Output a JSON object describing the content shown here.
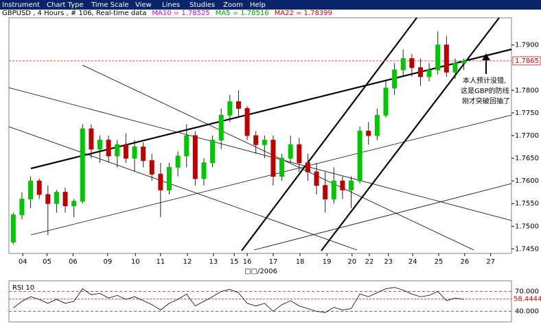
{
  "menu": [
    "Instrument",
    "Chart Type",
    "Time Scale",
    "View",
    "Lines",
    "Studies",
    "Zoom",
    "Help"
  ],
  "header": {
    "symbol": "GBPUSD , 4 Hours , # 106, Real-time data",
    "indicators": [
      {
        "text": "MA10 = 1.78525",
        "color": "#e000e0"
      },
      {
        "text": "MA5 = 1.78516",
        "color": "#00a000"
      },
      {
        "text": "MA22 = 1.78399",
        "color": "#e00000"
      }
    ]
  },
  "annotation": [
    "本人预计没错,",
    "这是GBP的防线",
    "刚才突破回抽了"
  ],
  "chart_data": [
    {
      "type": "candlestick",
      "xlabel": "□□/2006",
      "xlim": [
        0,
        58
      ],
      "xticks": [
        {
          "value": 1.6,
          "label": "04"
        },
        {
          "value": 4.4,
          "label": "05"
        },
        {
          "value": 7.4,
          "label": "06"
        },
        {
          "value": 11.4,
          "label": "09"
        },
        {
          "value": 14.6,
          "label": "10"
        },
        {
          "value": 17.5,
          "label": "11"
        },
        {
          "value": 20.6,
          "label": "12"
        },
        {
          "value": 23.6,
          "label": "13"
        },
        {
          "value": 26,
          "label": "15"
        },
        {
          "value": 27.5,
          "label": "16"
        },
        {
          "value": 30.5,
          "label": "17"
        },
        {
          "value": 33.6,
          "label": "18"
        },
        {
          "value": 36.7,
          "label": "19"
        },
        {
          "value": 39.6,
          "label": "20"
        },
        {
          "value": 41.6,
          "label": "22"
        },
        {
          "value": 43.8,
          "label": "23"
        },
        {
          "value": 46.6,
          "label": "24"
        },
        {
          "value": 49.6,
          "label": "25"
        },
        {
          "value": 52.6,
          "label": "26"
        },
        {
          "value": 55.6,
          "label": "27"
        }
      ],
      "ylim": [
        1.744,
        1.796
      ],
      "yticks": [
        {
          "value": 1.745,
          "label": "1.7450"
        },
        {
          "value": 1.75,
          "label": "1.7500"
        },
        {
          "value": 1.755,
          "label": "1.7550"
        },
        {
          "value": 1.76,
          "label": "1.7600"
        },
        {
          "value": 1.765,
          "label": "1.7650"
        },
        {
          "value": 1.77,
          "label": "1.7700"
        },
        {
          "value": 1.775,
          "label": "1.7750"
        },
        {
          "value": 1.78,
          "label": "1.7800"
        },
        {
          "value": 1.79,
          "label": "1.7900"
        }
      ],
      "current_price": 1.7865,
      "up_color": "#00c800",
      "down_color": "#c00000",
      "x": [
        0.5,
        1.5,
        2.5,
        3.5,
        4.5,
        5.5,
        6.5,
        7.5,
        8.5,
        9.5,
        10.5,
        11.5,
        12.5,
        13.5,
        14.5,
        15.5,
        16.5,
        17.5,
        18.5,
        19.5,
        20.5,
        21.5,
        22.5,
        23.5,
        24.5,
        25.5,
        26.5,
        27.5,
        28.5,
        29.5,
        30.5,
        31.5,
        32.5,
        33.5,
        34.5,
        35.5,
        36.5,
        37.5,
        38.5,
        39.5,
        40.5,
        41.5,
        42.5,
        43.5,
        44.5,
        45.5,
        46.5,
        47.5,
        48.5,
        49.5,
        50.5,
        51.5,
        52.5
      ],
      "open": [
        1.7465,
        1.7525,
        1.756,
        1.76,
        1.757,
        1.755,
        1.7575,
        1.7545,
        1.7555,
        1.7715,
        1.767,
        1.769,
        1.7655,
        1.768,
        1.765,
        1.7675,
        1.7645,
        1.7615,
        1.758,
        1.763,
        1.7655,
        1.77,
        1.7605,
        1.764,
        1.769,
        1.7745,
        1.7775,
        1.776,
        1.77,
        1.768,
        1.769,
        1.761,
        1.765,
        1.768,
        1.764,
        1.762,
        1.759,
        1.756,
        1.76,
        1.758,
        1.76,
        1.771,
        1.77,
        1.7745,
        1.7805,
        1.7845,
        1.787,
        1.785,
        1.783,
        1.7845,
        1.79,
        1.784,
        1.786
      ],
      "high": [
        1.753,
        1.7575,
        1.761,
        1.7605,
        1.759,
        1.758,
        1.7585,
        1.756,
        1.7725,
        1.7725,
        1.77,
        1.77,
        1.769,
        1.7705,
        1.769,
        1.7685,
        1.766,
        1.764,
        1.764,
        1.7665,
        1.7725,
        1.771,
        1.765,
        1.77,
        1.776,
        1.779,
        1.78,
        1.7765,
        1.771,
        1.77,
        1.77,
        1.766,
        1.77,
        1.7695,
        1.766,
        1.764,
        1.762,
        1.763,
        1.761,
        1.761,
        1.772,
        1.773,
        1.776,
        1.782,
        1.786,
        1.789,
        1.788,
        1.787,
        1.786,
        1.793,
        1.792,
        1.787,
        1.787
      ],
      "low": [
        1.746,
        1.7515,
        1.754,
        1.756,
        1.748,
        1.753,
        1.753,
        1.752,
        1.755,
        1.765,
        1.764,
        1.764,
        1.763,
        1.764,
        1.762,
        1.763,
        1.76,
        1.752,
        1.757,
        1.761,
        1.763,
        1.759,
        1.759,
        1.763,
        1.767,
        1.773,
        1.774,
        1.769,
        1.766,
        1.765,
        1.759,
        1.76,
        1.764,
        1.762,
        1.76,
        1.757,
        1.753,
        1.755,
        1.756,
        1.754,
        1.7595,
        1.768,
        1.769,
        1.774,
        1.779,
        1.783,
        1.783,
        1.781,
        1.782,
        1.7835,
        1.783,
        1.7825,
        1.7845
      ],
      "close": [
        1.7525,
        1.756,
        1.76,
        1.757,
        1.755,
        1.7575,
        1.7545,
        1.7555,
        1.7715,
        1.767,
        1.769,
        1.7655,
        1.768,
        1.765,
        1.7675,
        1.7645,
        1.7615,
        1.758,
        1.763,
        1.7655,
        1.77,
        1.7605,
        1.764,
        1.769,
        1.7745,
        1.7775,
        1.776,
        1.77,
        1.768,
        1.769,
        1.761,
        1.765,
        1.768,
        1.764,
        1.762,
        1.759,
        1.756,
        1.76,
        1.758,
        1.76,
        1.771,
        1.77,
        1.7745,
        1.7805,
        1.7845,
        1.787,
        1.785,
        1.783,
        1.7845,
        1.79,
        1.784,
        1.786,
        1.7865
      ]
    },
    {
      "type": "line",
      "title": "RSI 10",
      "xlim": [
        0,
        58
      ],
      "ylim": [
        24,
        86
      ],
      "yticks": [
        {
          "value": 70,
          "label": "70.000"
        },
        {
          "value": 40,
          "label": "40.000"
        }
      ],
      "current_value": 58.4444,
      "x": [
        0.5,
        1.5,
        2.5,
        3.5,
        4.5,
        5.5,
        6.5,
        7.5,
        8.5,
        9.5,
        10.5,
        11.5,
        12.5,
        13.5,
        14.5,
        15.5,
        16.5,
        17.5,
        18.5,
        19.5,
        20.5,
        21.5,
        22.5,
        23.5,
        24.5,
        25.5,
        26.5,
        27.5,
        28.5,
        29.5,
        30.5,
        31.5,
        32.5,
        33.5,
        34.5,
        35.5,
        36.5,
        37.5,
        38.5,
        39.5,
        40.5,
        41.5,
        42.5,
        43.5,
        44.5,
        45.5,
        46.5,
        47.5,
        48.5,
        49.5,
        50.5,
        51.5,
        52.5
      ],
      "series": [
        {
          "name": "RSI 10",
          "color": "#000000",
          "values": [
            45,
            55,
            62,
            58,
            52,
            58,
            52,
            55,
            74,
            65,
            67,
            60,
            64,
            58,
            62,
            56,
            50,
            42,
            52,
            58,
            66,
            48,
            55,
            62,
            70,
            73,
            68,
            52,
            48,
            52,
            40,
            50,
            56,
            48,
            44,
            40,
            38,
            46,
            42,
            44,
            66,
            62,
            68,
            74,
            76,
            72,
            66,
            62,
            64,
            70,
            56,
            60,
            58
          ]
        }
      ]
    }
  ]
}
